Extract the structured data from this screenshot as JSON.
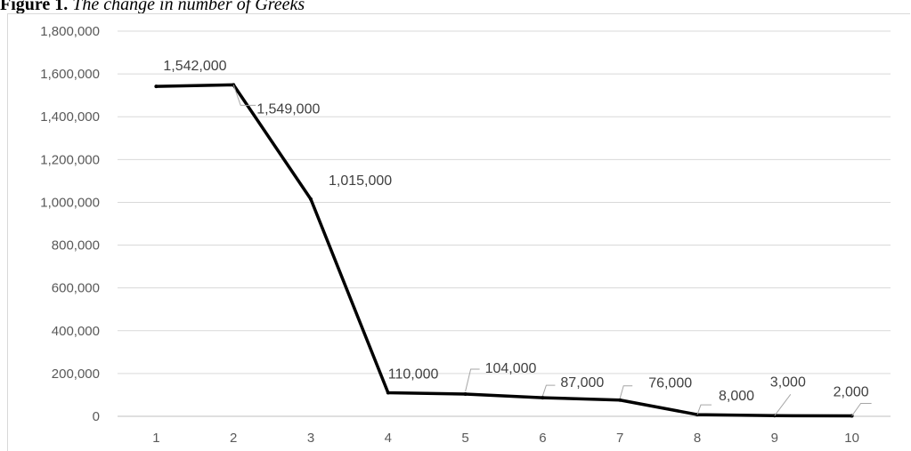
{
  "figure": {
    "title_lead": "Figure 1.",
    "title_caption": "The change in number of Greeks"
  },
  "chart_data": {
    "type": "line",
    "title": "",
    "xlabel": "",
    "ylabel": "",
    "categories": [
      "1",
      "2",
      "3",
      "4",
      "5",
      "6",
      "7",
      "8",
      "9",
      "10"
    ],
    "values": [
      1542000,
      1549000,
      1015000,
      110000,
      104000,
      87000,
      76000,
      8000,
      3000,
      2000
    ],
    "data_labels": [
      "1,542,000",
      "1,549,000",
      "1,015,000",
      "110,000",
      "104,000",
      "87,000",
      "76,000",
      "8,000",
      "3,000",
      "2,000"
    ],
    "y_ticks": [
      "0",
      "200,000",
      "400,000",
      "600,000",
      "800,000",
      "1,000,000",
      "1,200,000",
      "1,400,000",
      "1,600,000",
      "1,800,000"
    ],
    "ylim": [
      0,
      1800000
    ],
    "grid": true,
    "legend": "none",
    "colors": {
      "line": "#000000",
      "grid": "#d9d9d9",
      "text": "#595959"
    }
  }
}
